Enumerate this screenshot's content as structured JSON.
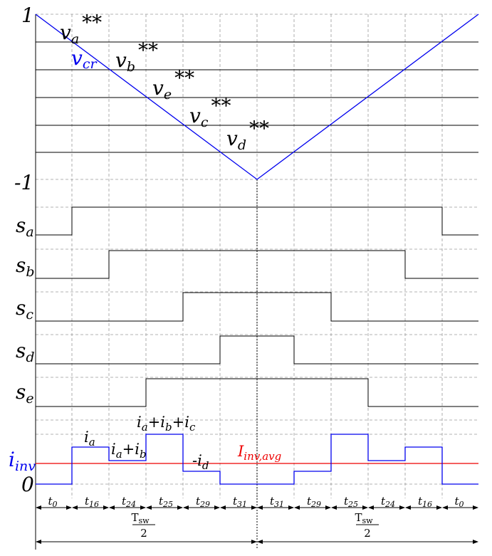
{
  "colors": {
    "carrier": "#0000ee",
    "current": "#0000ee",
    "average": "#ee0000",
    "lines": "#000000",
    "grid": "#999999"
  },
  "axis": {
    "top": "1",
    "bottom": "-1",
    "zero": "0"
  },
  "carrier": {
    "symbol": "v",
    "sub": "cr"
  },
  "references": [
    {
      "symbol": "v",
      "sub": "a",
      "sup": "**"
    },
    {
      "symbol": "v",
      "sub": "b",
      "sup": "**"
    },
    {
      "symbol": "v",
      "sub": "e",
      "sup": "**"
    },
    {
      "symbol": "v",
      "sub": "c",
      "sup": "**"
    },
    {
      "symbol": "v",
      "sub": "d",
      "sup": "**"
    }
  ],
  "switches": [
    {
      "symbol": "s",
      "sub": "a"
    },
    {
      "symbol": "s",
      "sub": "b"
    },
    {
      "symbol": "s",
      "sub": "c"
    },
    {
      "symbol": "s",
      "sub": "d"
    },
    {
      "symbol": "s",
      "sub": "e"
    }
  ],
  "current": {
    "symbol": "i",
    "sub": "inv",
    "average": {
      "symbol": "I",
      "sub": "inv,avg"
    },
    "segments": {
      "ia": {
        "i": "i",
        "sub": "a"
      },
      "iaib": {
        "p1": "i",
        "s1": "a",
        "plus": "+",
        "p2": "i",
        "s2": "b"
      },
      "iaibic": {
        "p1": "i",
        "s1": "a",
        "plus1": "+",
        "p2": "i",
        "s2": "b",
        "plus2": "+",
        "p3": "i",
        "s3": "c"
      },
      "neg_id": {
        "minus": "-",
        "i": "i",
        "sub": "d"
      }
    }
  },
  "intervals": [
    {
      "t": "t",
      "sub": "0"
    },
    {
      "t": "t",
      "sub": "16"
    },
    {
      "t": "t",
      "sub": "24"
    },
    {
      "t": "t",
      "sub": "25"
    },
    {
      "t": "t",
      "sub": "29"
    },
    {
      "t": "t",
      "sub": "31"
    },
    {
      "t": "t",
      "sub": "31"
    },
    {
      "t": "t",
      "sub": "29"
    },
    {
      "t": "t",
      "sub": "25"
    },
    {
      "t": "t",
      "sub": "24"
    },
    {
      "t": "t",
      "sub": "16"
    },
    {
      "t": "t",
      "sub": "0"
    }
  ],
  "period": {
    "num_main": "T",
    "num_sub": "sw",
    "den": "2"
  }
}
